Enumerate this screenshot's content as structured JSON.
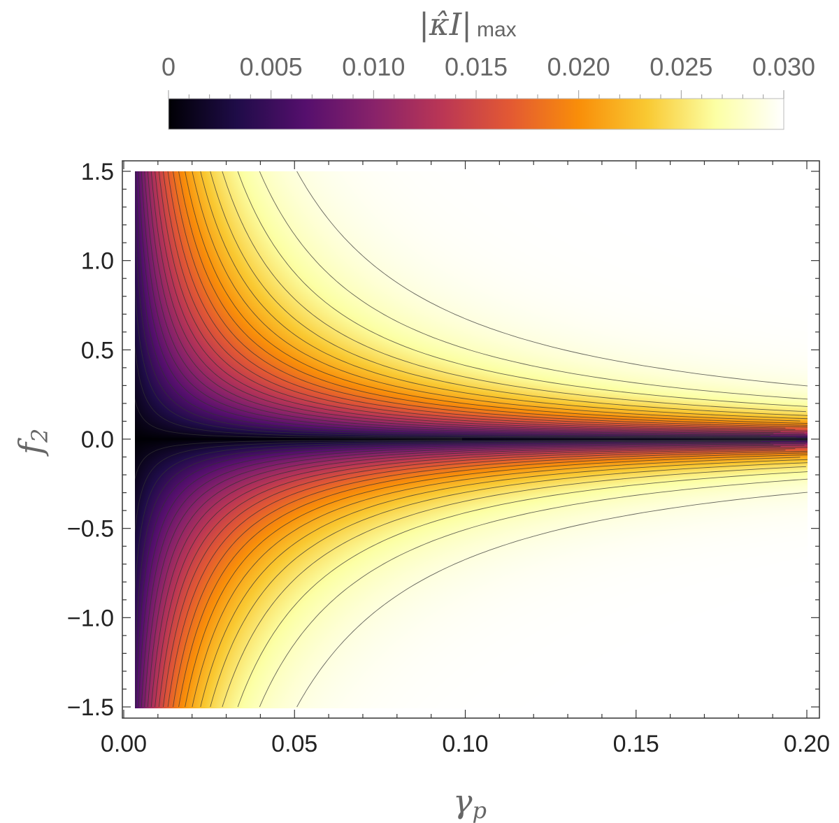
{
  "chart_data": {
    "type": "heatmap",
    "plot_kind": "contour density plot",
    "x_label": "γp",
    "y_label": "f2",
    "x_label_main": "γ",
    "x_label_sub": "p",
    "y_label_main": "f",
    "y_label_sub": "2",
    "xlim": [
      0.0,
      0.2
    ],
    "ylim": [
      -1.5,
      1.5
    ],
    "data_x_range": [
      0.003,
      0.2
    ],
    "x_ticks": [
      0.0,
      0.05,
      0.1,
      0.15,
      0.2
    ],
    "x_tick_labels": [
      "0.00",
      "0.05",
      "0.10",
      "0.15",
      "0.20"
    ],
    "y_ticks": [
      1.5,
      1.0,
      0.5,
      0.0,
      -0.5,
      -1.0,
      -1.5
    ],
    "y_tick_labels": [
      "1.5",
      "1.0",
      "0.5",
      "0.0",
      "−0.5",
      "−1.0",
      "−1.5"
    ],
    "colorbar": {
      "title_main": "|κ̂I|",
      "title_sub": "max",
      "range": [
        0,
        0.03
      ],
      "ticks": [
        0,
        0.005,
        0.01,
        0.015,
        0.02,
        0.025,
        0.03
      ],
      "tick_labels": [
        "0",
        "0.005",
        "0.010",
        "0.015",
        "0.020",
        "0.025",
        "0.030"
      ],
      "colormap": [
        "#000004",
        "#1f0c48",
        "#550f6d",
        "#88226a",
        "#ba3655",
        "#e35933",
        "#f98e09",
        "#f9c932",
        "#fcffa4",
        "#ffffff"
      ]
    },
    "model": "value ≈ 0.03 · (1 − exp(−45·γp·|f2|^0.85))",
    "contour_levels": {
      "start": 0.0012,
      "step": 0.0012,
      "end": 0.0295
    },
    "contour_color": "#333333"
  }
}
